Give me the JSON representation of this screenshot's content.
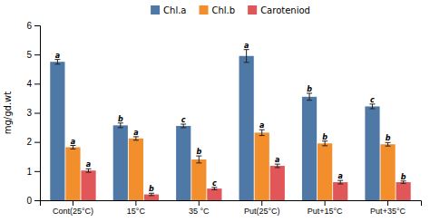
{
  "chart_data": {
    "type": "bar",
    "ylabel": "mg/gd.wt",
    "categories": [
      "Cont(25°C)",
      "15°C",
      "35 °C",
      "Put(25°C)",
      "Put+15°C",
      "Put+35°C"
    ],
    "series": [
      {
        "name": "Chl.a",
        "values": [
          4.75,
          2.57,
          2.55,
          4.95,
          3.55,
          3.22
        ],
        "errors": [
          0.08,
          0.08,
          0.06,
          0.22,
          0.12,
          0.08
        ],
        "labels": [
          "a",
          "b",
          "c",
          "a",
          "b",
          "c"
        ]
      },
      {
        "name": "Chl.b",
        "values": [
          1.82,
          2.12,
          1.4,
          2.32,
          1.95,
          1.92
        ],
        "errors": [
          0.06,
          0.06,
          0.12,
          0.1,
          0.08,
          0.06
        ],
        "labels": [
          "a",
          "a",
          "b",
          "a",
          "b",
          "b"
        ]
      },
      {
        "name": "Caroteniod",
        "values": [
          1.02,
          0.2,
          0.4,
          1.18,
          0.62,
          0.62
        ],
        "errors": [
          0.06,
          0.04,
          0.04,
          0.06,
          0.06,
          0.04
        ],
        "labels": [
          "a",
          "b",
          "c",
          "a",
          "a",
          "b"
        ]
      }
    ],
    "ylim": [
      0,
      6
    ],
    "yticks": [
      0,
      1,
      2,
      3,
      4,
      5,
      6
    ],
    "grid": false,
    "legend": "top"
  }
}
